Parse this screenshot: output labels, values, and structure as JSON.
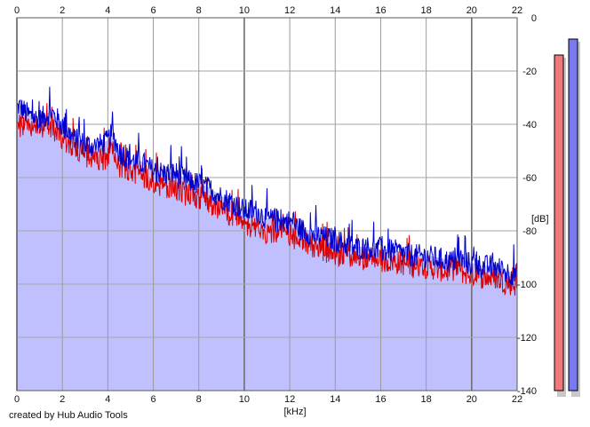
{
  "chart_data": {
    "type": "area",
    "title": "",
    "xlabel": "[kHz]",
    "ylabel": "[dB]",
    "xlim": [
      0,
      22
    ],
    "ylim": [
      -140,
      0
    ],
    "x_ticks": [
      "0",
      "2",
      "4",
      "6",
      "8",
      "10",
      "12",
      "14",
      "16",
      "18",
      "20",
      "22"
    ],
    "y_ticks": [
      "0",
      "-20",
      "-40",
      "-60",
      "-80",
      "-100",
      "-120",
      "-140"
    ],
    "grid": true,
    "x_tick_positions": "top-and-bottom",
    "y_tick_positions": "right",
    "series": [
      {
        "color": "#0000cc",
        "fill": "#c0c0ff",
        "x": [
          0,
          0.5,
          1,
          1.5,
          2,
          2.5,
          3,
          3.5,
          4,
          4.2,
          4.5,
          5,
          5.5,
          6,
          6.5,
          7,
          7.5,
          8,
          8.5,
          9,
          9.5,
          10,
          10.5,
          11,
          11.5,
          12,
          12.5,
          13,
          13.5,
          14,
          14.5,
          15,
          15.5,
          16,
          16.5,
          17,
          17.5,
          18,
          18.5,
          19,
          19.5,
          20,
          20.5,
          21,
          21.5,
          22
        ],
        "values": [
          -32,
          -36,
          -38,
          -35,
          -40,
          -45,
          -47,
          -48,
          -46,
          -43,
          -50,
          -53,
          -54,
          -57,
          -58,
          -58,
          -61,
          -62,
          -64,
          -67,
          -69,
          -72,
          -72,
          -75,
          -76,
          -76,
          -79,
          -81,
          -82,
          -83,
          -85,
          -86,
          -86,
          -87,
          -87,
          -88,
          -89,
          -89,
          -90,
          -91,
          -91,
          -92,
          -93,
          -93,
          -95,
          -96
        ]
      },
      {
        "color": "#dd0000",
        "x": [
          0,
          0.5,
          1,
          1.5,
          2,
          2.5,
          3,
          3.5,
          4,
          4.2,
          4.5,
          5,
          5.5,
          6,
          6.5,
          7,
          7.5,
          8,
          8.5,
          9,
          9.5,
          10,
          10.5,
          11,
          11.5,
          12,
          12.5,
          13,
          13.5,
          14,
          14.5,
          15,
          15.5,
          16,
          16.5,
          17,
          17.5,
          18,
          18.5,
          19,
          19.5,
          20,
          20.5,
          21,
          21.5,
          22
        ],
        "values": [
          -39,
          -42,
          -43,
          -40,
          -45,
          -48,
          -51,
          -53,
          -52,
          -49,
          -56,
          -57,
          -59,
          -61,
          -63,
          -64,
          -66,
          -67,
          -69,
          -72,
          -74,
          -77,
          -78,
          -80,
          -81,
          -82,
          -83,
          -85,
          -87,
          -88,
          -89,
          -90,
          -90,
          -91,
          -91,
          -92,
          -93,
          -93,
          -94,
          -95,
          -95,
          -96,
          -97,
          -97,
          -99,
          -100
        ]
      }
    ],
    "level_bars": [
      {
        "color": "#f07a7a",
        "level_db": -14
      },
      {
        "color": "#7a7af0",
        "level_db": -8
      }
    ],
    "credit": "created by Hub Audio Tools"
  }
}
